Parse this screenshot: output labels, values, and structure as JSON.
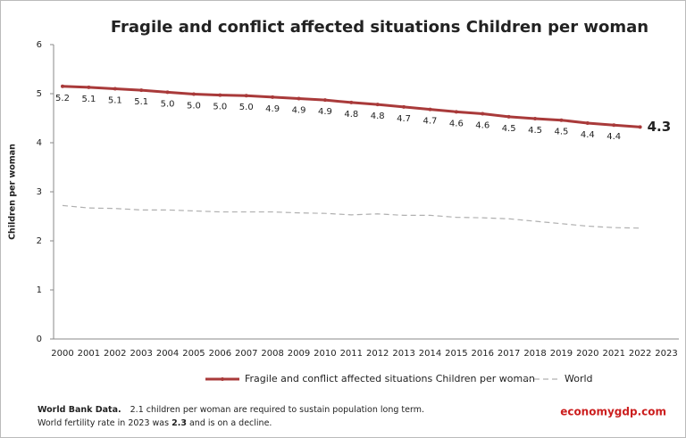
{
  "chart_data": {
    "type": "line",
    "title": "Fragile and conflict affected situations Children per woman",
    "y_label": "Children per woman",
    "categories": [
      "2000",
      "2001",
      "2002",
      "2003",
      "2004",
      "2005",
      "2006",
      "2007",
      "2008",
      "2009",
      "2010",
      "2011",
      "2012",
      "2013",
      "2014",
      "2015",
      "2016",
      "2017",
      "2018",
      "2019",
      "2020",
      "2021",
      "2022",
      "2023"
    ],
    "series": [
      {
        "name": "Fragile and conflict affected situations Children per woman",
        "color": "#a93a3a",
        "values": [
          5.15,
          5.13,
          5.1,
          5.07,
          5.03,
          4.99,
          4.97,
          4.96,
          4.93,
          4.9,
          4.87,
          4.82,
          4.78,
          4.73,
          4.68,
          4.63,
          4.59,
          4.53,
          4.49,
          4.46,
          4.4,
          4.36,
          4.32,
          null
        ],
        "value_labels": [
          "5.2",
          "5.1",
          "5.1",
          "5.1",
          "5.0",
          "5.0",
          "5.0",
          "5.0",
          "4.9",
          "4.9",
          "4.9",
          "4.8",
          "4.8",
          "4.7",
          "4.7",
          "4.6",
          "4.6",
          "4.5",
          "4.5",
          "4.5",
          "4.4",
          "4.4",
          "4.3",
          null
        ]
      },
      {
        "name": "World",
        "color": "#b0b0b0",
        "dashed": true,
        "values": [
          2.72,
          2.67,
          2.66,
          2.63,
          2.63,
          2.61,
          2.59,
          2.59,
          2.59,
          2.57,
          2.56,
          2.53,
          2.55,
          2.52,
          2.52,
          2.48,
          2.47,
          2.45,
          2.4,
          2.35,
          2.3,
          2.27,
          2.26,
          null
        ]
      }
    ],
    "ylim": [
      0,
      6
    ],
    "yticks": [
      0,
      1,
      2,
      3,
      4,
      5,
      6
    ],
    "grid": false
  },
  "footnote": {
    "source": "World Bank Data.",
    "line1": "2.1 children per woman are required to sustain population long term.",
    "line2": [
      "World fertility rate in 2023 was ",
      "2.3",
      " and is on a decline."
    ]
  },
  "brand": "economygdp.com"
}
